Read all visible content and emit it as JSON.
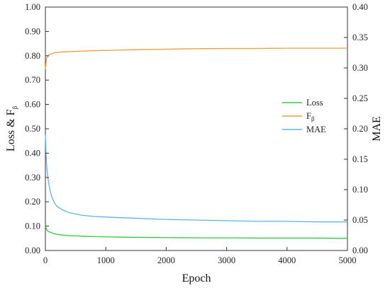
{
  "chart_data": {
    "type": "line",
    "title": "",
    "xlabel": "Epoch",
    "ylabel_left": "Loss & F",
    "ylabel_left_subscript": "β",
    "ylabel_right": "MAE",
    "xlim": [
      0,
      5000
    ],
    "ylim_left": [
      0,
      1.0
    ],
    "ylim_right": [
      0,
      0.4
    ],
    "xticks": [
      0,
      1000,
      2000,
      3000,
      4000,
      5000
    ],
    "yticks_left": [
      "0.00",
      "0.10",
      "0.20",
      "0.30",
      "0.40",
      "0.50",
      "0.60",
      "0.70",
      "0.80",
      "0.90",
      "1.00"
    ],
    "yticks_right": [
      "0.00",
      "0.05",
      "0.10",
      "0.15",
      "0.20",
      "0.25",
      "0.30",
      "0.35",
      "0.40"
    ],
    "grid": false,
    "legend_position": "right-middle",
    "series": [
      {
        "name": "Loss",
        "subscript": "",
        "axis": "left",
        "color": "#2ecc40",
        "x": [
          0,
          20,
          50,
          100,
          150,
          200,
          300,
          400,
          500,
          600,
          700,
          800,
          1000,
          1200,
          1500,
          2000,
          2500,
          3000,
          3500,
          4000,
          4500,
          5000
        ],
        "values": [
          0.1,
          0.085,
          0.078,
          0.073,
          0.069,
          0.066,
          0.063,
          0.061,
          0.06,
          0.059,
          0.058,
          0.057,
          0.056,
          0.055,
          0.054,
          0.053,
          0.052,
          0.052,
          0.051,
          0.051,
          0.051,
          0.05
        ]
      },
      {
        "name": "F",
        "subscript": "β",
        "axis": "left",
        "color": "#f39c34",
        "x": [
          0,
          20,
          50,
          100,
          150,
          200,
          300,
          400,
          500,
          600,
          700,
          800,
          1000,
          1200,
          1500,
          2000,
          2500,
          3000,
          3500,
          4000,
          4500,
          5000
        ],
        "values": [
          0.745,
          0.79,
          0.802,
          0.808,
          0.812,
          0.814,
          0.816,
          0.817,
          0.818,
          0.819,
          0.82,
          0.821,
          0.822,
          0.823,
          0.825,
          0.827,
          0.829,
          0.83,
          0.83,
          0.831,
          0.831,
          0.831
        ]
      },
      {
        "name": "MAE",
        "subscript": "",
        "axis": "right",
        "color": "#5ab4f0",
        "x": [
          0,
          10,
          20,
          40,
          60,
          80,
          100,
          150,
          200,
          300,
          400,
          500,
          600,
          700,
          800,
          1000,
          1200,
          1500,
          2000,
          2500,
          3000,
          3500,
          4000,
          4500,
          5000
        ],
        "values": [
          0.19,
          0.16,
          0.14,
          0.12,
          0.108,
          0.098,
          0.09,
          0.078,
          0.072,
          0.066,
          0.062,
          0.06,
          0.058,
          0.057,
          0.056,
          0.055,
          0.054,
          0.053,
          0.051,
          0.05,
          0.049,
          0.048,
          0.048,
          0.047,
          0.047
        ]
      }
    ]
  }
}
